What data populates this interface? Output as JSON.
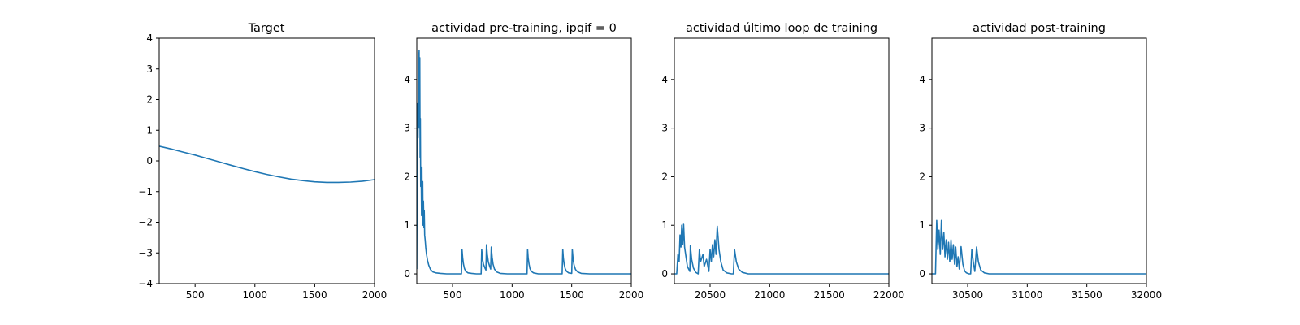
{
  "figure": {
    "line_color": "#1f77b4"
  },
  "chart_data": [
    {
      "type": "line",
      "title": "Target",
      "xlabel": "",
      "ylabel": "",
      "xlim": [
        200,
        2000
      ],
      "ylim": [
        -4,
        4
      ],
      "xticks": [
        500,
        1000,
        1500,
        2000
      ],
      "yticks": [
        -4,
        -3,
        -2,
        -1,
        0,
        1,
        2,
        3,
        4
      ],
      "grid": false,
      "series": [
        {
          "x": [
            200,
            300,
            400,
            500,
            600,
            700,
            800,
            900,
            1000,
            1100,
            1200,
            1300,
            1400,
            1500,
            1600,
            1700,
            1800,
            1900,
            2000
          ],
          "y": [
            0.48,
            0.39,
            0.29,
            0.19,
            0.08,
            -0.03,
            -0.14,
            -0.25,
            -0.35,
            -0.44,
            -0.52,
            -0.59,
            -0.64,
            -0.68,
            -0.7,
            -0.7,
            -0.69,
            -0.66,
            -0.61
          ]
        }
      ]
    },
    {
      "type": "line",
      "title": "actividad pre-training, ipqif = 0",
      "xlabel": "",
      "ylabel": "",
      "xlim": [
        200,
        2000
      ],
      "ylim": [
        -0.2,
        4.85
      ],
      "xticks": [
        500,
        1000,
        1500,
        2000
      ],
      "yticks": [
        0,
        1,
        2,
        3,
        4
      ],
      "grid": false,
      "series": [
        {
          "x": [
            200,
            205,
            210,
            215,
            218,
            220,
            222,
            225,
            228,
            230,
            233,
            236,
            240,
            243,
            246,
            250,
            253,
            256,
            260,
            263,
            266,
            270,
            275,
            282,
            290,
            300,
            315,
            335,
            360,
            400,
            450,
            500,
            575,
            580,
            585,
            592,
            600,
            612,
            630,
            660,
            700,
            740,
            745,
            752,
            760,
            772,
            780,
            785,
            792,
            800,
            812,
            820,
            825,
            832,
            840,
            852,
            870,
            900,
            960,
            1030,
            1125,
            1130,
            1135,
            1142,
            1150,
            1162,
            1180,
            1220,
            1300,
            1420,
            1425,
            1430,
            1437,
            1445,
            1457,
            1475,
            1500,
            1505,
            1512,
            1520,
            1532,
            1550,
            1580,
            1650,
            1800,
            2000
          ],
          "y": [
            0.1,
            3.5,
            2.8,
            4.55,
            3.3,
            4.6,
            3.0,
            4.45,
            2.4,
            3.2,
            1.8,
            2.2,
            1.2,
            2.2,
            1.3,
            1.9,
            1.0,
            1.5,
            0.95,
            1.3,
            0.8,
            0.7,
            0.55,
            0.4,
            0.28,
            0.18,
            0.09,
            0.04,
            0.02,
            0.01,
            0.0,
            0.0,
            0.0,
            0.5,
            0.33,
            0.2,
            0.11,
            0.05,
            0.02,
            0.01,
            0.0,
            0.0,
            0.5,
            0.3,
            0.2,
            0.12,
            0.08,
            0.6,
            0.4,
            0.25,
            0.15,
            0.1,
            0.55,
            0.35,
            0.2,
            0.1,
            0.04,
            0.01,
            0.0,
            0.0,
            0.0,
            0.5,
            0.33,
            0.2,
            0.11,
            0.05,
            0.02,
            0.0,
            0.0,
            0.0,
            0.5,
            0.33,
            0.2,
            0.11,
            0.05,
            0.02,
            0.01,
            0.5,
            0.3,
            0.18,
            0.09,
            0.04,
            0.01,
            0.0,
            0.0,
            0.0
          ]
        }
      ]
    },
    {
      "type": "line",
      "title": "actividad último loop de training",
      "xlabel": "",
      "ylabel": "",
      "xlim": [
        20200,
        22000
      ],
      "ylim": [
        -0.2,
        4.85
      ],
      "xticks": [
        20500,
        21000,
        21500,
        22000
      ],
      "yticks": [
        0,
        1,
        2,
        3,
        4
      ],
      "grid": false,
      "series": [
        {
          "x": [
            20200,
            20220,
            20230,
            20240,
            20248,
            20255,
            20262,
            20270,
            20278,
            20286,
            20295,
            20310,
            20330,
            20334,
            20345,
            20360,
            20380,
            20400,
            20410,
            20420,
            20440,
            20450,
            20470,
            20490,
            20500,
            20510,
            20520,
            20530,
            20540,
            20550,
            20560,
            20575,
            20590,
            20610,
            20640,
            20680,
            20695,
            20705,
            20720,
            20740,
            20770,
            20820,
            20900,
            21100,
            21500,
            22000
          ],
          "y": [
            0.0,
            0.0,
            0.4,
            0.25,
            0.8,
            0.55,
            1.0,
            0.6,
            1.02,
            0.55,
            0.4,
            0.15,
            0.05,
            0.58,
            0.3,
            0.12,
            0.03,
            0.0,
            0.5,
            0.25,
            0.4,
            0.15,
            0.3,
            0.05,
            0.5,
            0.25,
            0.6,
            0.35,
            0.7,
            0.4,
            0.98,
            0.5,
            0.25,
            0.08,
            0.02,
            0.0,
            0.0,
            0.5,
            0.25,
            0.1,
            0.03,
            0.0,
            0.0,
            0.0,
            0.0,
            0.0
          ]
        }
      ]
    },
    {
      "type": "line",
      "title": "actividad post-training",
      "xlabel": "",
      "ylabel": "",
      "xlim": [
        30200,
        32000
      ],
      "ylim": [
        -0.2,
        4.85
      ],
      "xticks": [
        30500,
        31000,
        31500,
        32000
      ],
      "yticks": [
        0,
        1,
        2,
        3,
        4
      ],
      "grid": false,
      "series": [
        {
          "x": [
            30200,
            30230,
            30240,
            30250,
            30260,
            30270,
            30280,
            30290,
            30300,
            30310,
            30320,
            30330,
            30340,
            30350,
            30360,
            30370,
            30380,
            30390,
            30400,
            30410,
            30420,
            30430,
            30445,
            30460,
            30475,
            30490,
            30510,
            30525,
            30535,
            30550,
            30560,
            30575,
            30590,
            30610,
            30640,
            30680,
            30720,
            30800,
            31000,
            31500,
            32000
          ],
          "y": [
            0.0,
            0.0,
            1.1,
            0.5,
            0.9,
            0.4,
            1.1,
            0.5,
            0.85,
            0.35,
            0.7,
            0.3,
            0.65,
            0.25,
            0.7,
            0.3,
            0.6,
            0.2,
            0.55,
            0.15,
            0.35,
            0.1,
            0.56,
            0.2,
            0.06,
            0.02,
            0.0,
            0.0,
            0.5,
            0.2,
            0.05,
            0.55,
            0.25,
            0.08,
            0.02,
            0.0,
            0.0,
            0.0,
            0.0,
            0.0,
            0.0
          ]
        }
      ]
    }
  ]
}
